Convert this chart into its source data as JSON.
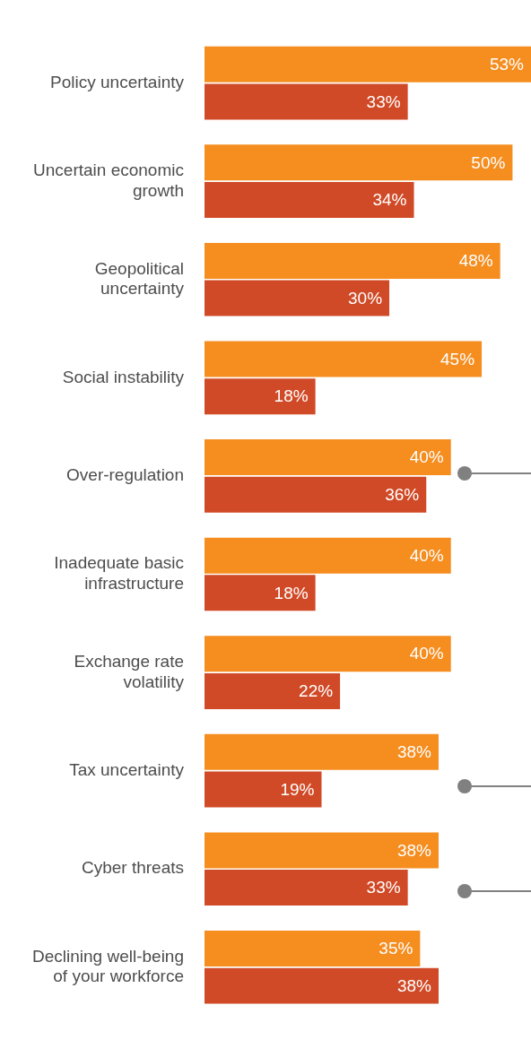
{
  "chart_data": {
    "type": "bar",
    "orientation": "horizontal",
    "categories": [
      "Policy uncertainty",
      "Uncertain economic growth",
      "Geopolitical uncertainty",
      "Social instability",
      "Over-regulation",
      "Inadequate basic infrastructure",
      "Exchange rate volatility",
      "Tax uncertainty",
      "Cyber threats",
      "Declining well-being of your workforce"
    ],
    "series": [
      {
        "color": "#f58d1f",
        "values": [
          53,
          50,
          48,
          45,
          40,
          40,
          40,
          38,
          38,
          35
        ],
        "value_labels": [
          "53%",
          "50%",
          "48%",
          "45%",
          "40%",
          "40%",
          "40%",
          "38%",
          "38%",
          "35%"
        ]
      },
      {
        "color": "#d04a27",
        "values": [
          33,
          34,
          30,
          18,
          36,
          18,
          22,
          19,
          33,
          38
        ],
        "value_labels": [
          "33%",
          "34%",
          "30%",
          "18%",
          "36%",
          "18%",
          "22%",
          "19%",
          "33%",
          "38%"
        ]
      }
    ]
  }
}
